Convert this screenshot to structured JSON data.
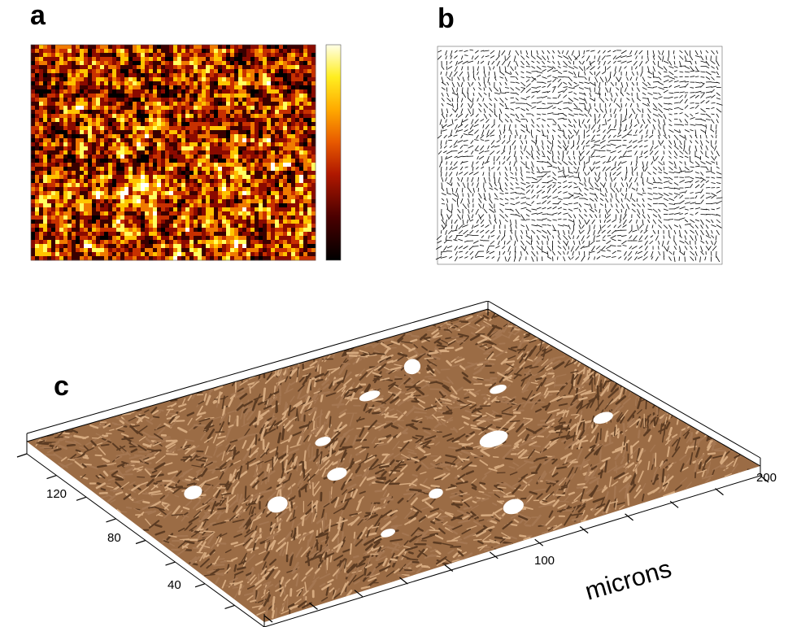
{
  "panels": {
    "a": {
      "label": "a"
    },
    "b": {
      "label": "b"
    },
    "c": {
      "label": "c"
    }
  },
  "surface_plot": {
    "units": "microns",
    "x_tick_labels": [
      "100",
      "200"
    ],
    "y_tick_labels": [
      "40",
      "80",
      "120"
    ]
  },
  "colors": {
    "heatmap_scale": [
      "#000000",
      "#3a0000",
      "#8a0a00",
      "#c83000",
      "#f07a00",
      "#ffc400",
      "#ffff60",
      "#ffffff"
    ],
    "fiber_base": "#a57752",
    "fiber_light": "#d6aa7f",
    "fiber_dark": "#5b3b22",
    "vector_stroke": "#000000"
  }
}
